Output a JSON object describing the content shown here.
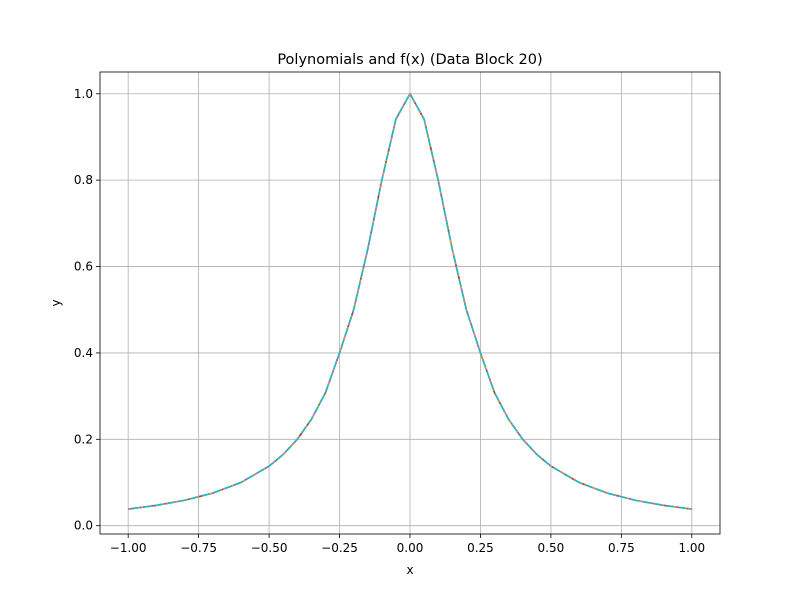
{
  "chart_data": {
    "type": "line",
    "title": "Polynomials and f(x) (Data Block 20)",
    "xlabel": "x",
    "ylabel": "y",
    "xlim": [
      -1.1,
      1.1
    ],
    "ylim": [
      -0.0192,
      1.0504
    ],
    "grid": true,
    "legend": "none",
    "xticks": [
      -1.0,
      -0.75,
      -0.5,
      -0.25,
      0.0,
      0.25,
      0.5,
      0.75,
      1.0
    ],
    "xtick_labels": [
      "−1.00",
      "−0.75",
      "−0.50",
      "−0.25",
      "0.00",
      "0.25",
      "0.50",
      "0.75",
      "1.00"
    ],
    "yticks": [
      0.0,
      0.2,
      0.4,
      0.6,
      0.8,
      1.0
    ],
    "ytick_labels": [
      "0.0",
      "0.2",
      "0.4",
      "0.6",
      "0.8",
      "1.0"
    ],
    "series_colors": [
      "#1f77b4",
      "#ff7f0e",
      "#2ca02c",
      "#d62728",
      "#9467bd",
      "#8c564b",
      "#e377c2",
      "#7f7f7f",
      "#bcbd22",
      "#17becf"
    ],
    "x": [
      -1.0,
      -0.9,
      -0.8,
      -0.7,
      -0.6,
      -0.5,
      -0.45,
      -0.4,
      -0.35,
      -0.3,
      -0.25,
      -0.2,
      -0.15,
      -0.1,
      -0.05,
      0.0,
      0.05,
      0.1,
      0.15,
      0.2,
      0.25,
      0.3,
      0.35,
      0.4,
      0.45,
      0.5,
      0.6,
      0.7,
      0.8,
      0.9,
      1.0
    ],
    "series": [
      {
        "color": "#1f77b4",
        "values": [
          0.0385,
          0.0471,
          0.0588,
          0.0755,
          0.1,
          0.1379,
          0.1649,
          0.2,
          0.2462,
          0.3077,
          0.4,
          0.5,
          0.64,
          0.8,
          0.9412,
          1.0,
          0.9412,
          0.8,
          0.64,
          0.5,
          0.4,
          0.3077,
          0.2462,
          0.2,
          0.1649,
          0.1379,
          0.1,
          0.0755,
          0.0588,
          0.0471,
          0.0385
        ]
      },
      {
        "color": "#ff7f0e",
        "values": [
          0.0385,
          0.0471,
          0.0588,
          0.0755,
          0.1,
          0.1379,
          0.1649,
          0.2,
          0.2462,
          0.3077,
          0.4,
          0.5,
          0.64,
          0.8,
          0.9412,
          1.0,
          0.9412,
          0.8,
          0.64,
          0.5,
          0.4,
          0.3077,
          0.2462,
          0.2,
          0.1649,
          0.1379,
          0.1,
          0.0755,
          0.0588,
          0.0471,
          0.0385
        ]
      },
      {
        "color": "#2ca02c",
        "values": [
          0.0385,
          0.0471,
          0.0588,
          0.0755,
          0.1,
          0.1379,
          0.1649,
          0.2,
          0.2462,
          0.3077,
          0.4,
          0.5,
          0.64,
          0.8,
          0.9412,
          1.0,
          0.9412,
          0.8,
          0.64,
          0.5,
          0.4,
          0.3077,
          0.2462,
          0.2,
          0.1649,
          0.1379,
          0.1,
          0.0755,
          0.0588,
          0.0471,
          0.0385
        ]
      },
      {
        "color": "#d62728",
        "values": [
          0.0385,
          0.0471,
          0.0588,
          0.0755,
          0.1,
          0.1379,
          0.1649,
          0.2,
          0.2462,
          0.3077,
          0.4,
          0.5,
          0.64,
          0.8,
          0.9412,
          1.0,
          0.9412,
          0.8,
          0.64,
          0.5,
          0.4,
          0.3077,
          0.2462,
          0.2,
          0.1649,
          0.1379,
          0.1,
          0.0755,
          0.0588,
          0.0471,
          0.0385
        ]
      },
      {
        "color": "#9467bd",
        "values": [
          0.0385,
          0.0471,
          0.0588,
          0.0755,
          0.1,
          0.1379,
          0.1649,
          0.2,
          0.2462,
          0.3077,
          0.4,
          0.5,
          0.64,
          0.8,
          0.9412,
          1.0,
          0.9412,
          0.8,
          0.64,
          0.5,
          0.4,
          0.3077,
          0.2462,
          0.2,
          0.1649,
          0.1379,
          0.1,
          0.0755,
          0.0588,
          0.0471,
          0.0385
        ]
      },
      {
        "color": "#e377c2",
        "values": [
          0.0385,
          0.0471,
          0.0588,
          0.0755,
          0.1,
          0.1379,
          0.1649,
          0.2,
          0.2462,
          0.3077,
          0.4,
          0.5,
          0.64,
          0.8,
          0.9412,
          1.0,
          0.9412,
          0.8,
          0.64,
          0.5,
          0.4,
          0.3077,
          0.2462,
          0.2,
          0.1649,
          0.1379,
          0.1,
          0.0755,
          0.0588,
          0.0471,
          0.0385
        ]
      },
      {
        "color": "#bcbd22",
        "values": [
          0.0385,
          0.0471,
          0.0588,
          0.0755,
          0.1,
          0.1379,
          0.1649,
          0.2,
          0.2462,
          0.3077,
          0.4,
          0.5,
          0.64,
          0.8,
          0.9412,
          1.0,
          0.9412,
          0.8,
          0.64,
          0.5,
          0.4,
          0.3077,
          0.2462,
          0.2,
          0.1649,
          0.1379,
          0.1,
          0.0755,
          0.0588,
          0.0471,
          0.0385
        ]
      },
      {
        "color": "#17becf",
        "values": [
          0.0385,
          0.0471,
          0.0588,
          0.0755,
          0.1,
          0.1379,
          0.1649,
          0.2,
          0.2462,
          0.3077,
          0.4,
          0.5,
          0.64,
          0.8,
          0.9412,
          1.0,
          0.9412,
          0.8,
          0.64,
          0.5,
          0.4,
          0.3077,
          0.2462,
          0.2,
          0.1649,
          0.1379,
          0.1,
          0.0755,
          0.0588,
          0.0471,
          0.0385
        ]
      }
    ]
  }
}
